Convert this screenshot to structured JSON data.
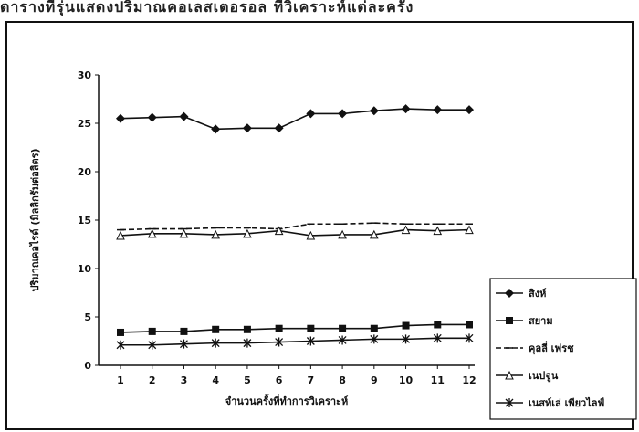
{
  "caption": "ตารางที่รุ่นแสดงปริมาณคอเลสเตอรอล ที่วิเคราะห์แต่ละครั้ง",
  "chart_data": {
    "type": "line",
    "xlabel": "จำนวนครั้งที่ทำการวิเคราะห์",
    "ylabel": "ปริมาณคอไรด์ (มิลลิกรัมต่อลิตร)",
    "ylim": [
      0,
      30
    ],
    "yticks": [
      0,
      5,
      10,
      15,
      20,
      25,
      30
    ],
    "x": [
      1,
      2,
      3,
      4,
      5,
      6,
      7,
      8,
      9,
      10,
      11,
      12
    ],
    "grid": false,
    "legend_position": "right",
    "series": [
      {
        "name": "สิงห์",
        "marker": "diamond",
        "values": [
          25.5,
          25.6,
          25.7,
          24.4,
          24.5,
          24.5,
          26.0,
          26.0,
          26.3,
          26.5,
          26.4,
          26.4
        ]
      },
      {
        "name": "สยาม",
        "marker": "square",
        "values": [
          3.4,
          3.5,
          3.5,
          3.7,
          3.7,
          3.8,
          3.8,
          3.8,
          3.8,
          4.1,
          4.2,
          4.2
        ]
      },
      {
        "name": "คุลลี่ เฟรช",
        "marker": "dash",
        "values": [
          14.0,
          14.1,
          14.1,
          14.2,
          14.2,
          14.1,
          14.6,
          14.6,
          14.7,
          14.6,
          14.6,
          14.6
        ]
      },
      {
        "name": "เนปจูน",
        "marker": "triangle",
        "values": [
          13.4,
          13.6,
          13.6,
          13.5,
          13.6,
          13.9,
          13.4,
          13.5,
          13.5,
          14.0,
          13.9,
          14.0
        ]
      },
      {
        "name": "เนสท์เล่ เพียวไลฟ์",
        "marker": "asterisk",
        "values": [
          2.1,
          2.1,
          2.2,
          2.3,
          2.3,
          2.4,
          2.5,
          2.6,
          2.7,
          2.7,
          2.8,
          2.8
        ]
      }
    ]
  }
}
